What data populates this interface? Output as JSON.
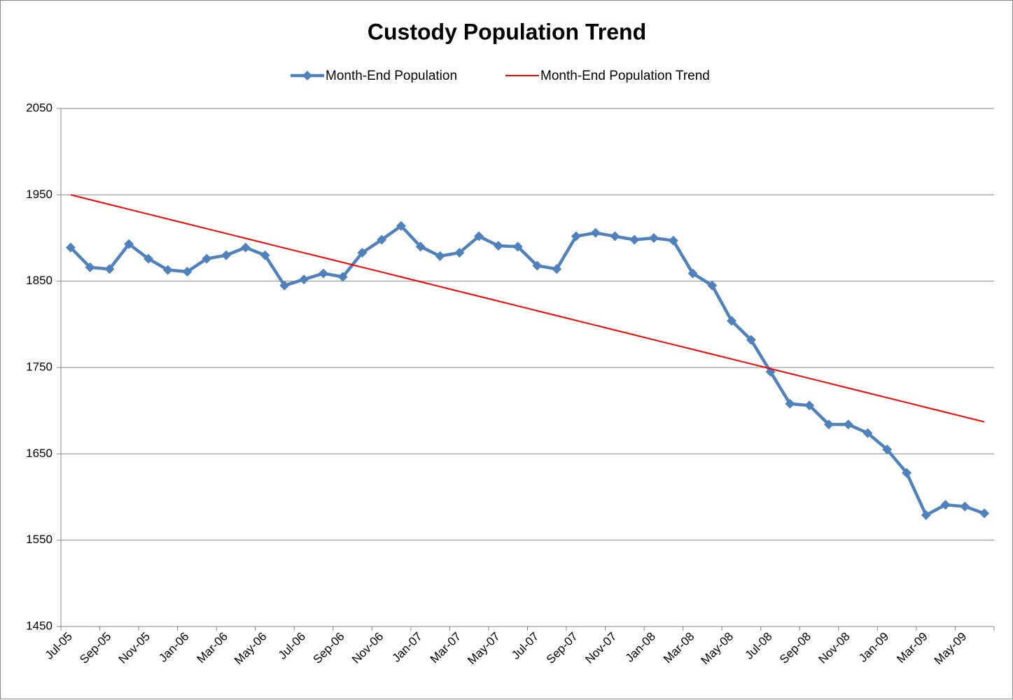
{
  "chart_data": {
    "type": "line",
    "title": "Custody Population Trend",
    "categories": [
      "Jul-05",
      null,
      "Sep-05",
      null,
      "Nov-05",
      null,
      "Jan-06",
      null,
      "Mar-06",
      null,
      "May-06",
      null,
      "Jul-06",
      null,
      "Sep-06",
      null,
      "Nov-06",
      null,
      "Jan-07",
      null,
      "Mar-07",
      null,
      "May-07",
      null,
      "Jul-07",
      null,
      "Sep-07",
      null,
      "Nov-07",
      null,
      "Jan-08",
      null,
      "Mar-08",
      null,
      "May-08",
      null,
      "Jul-08",
      null,
      "Sep-08",
      null,
      "Nov-08",
      null,
      "Jan-09",
      null,
      "Mar-09",
      null,
      "May-09",
      null
    ],
    "series": [
      {
        "name": "Month-End Population",
        "color": "#4f81bd",
        "marker": "diamond",
        "values": [
          1889,
          1866,
          1864,
          1893,
          1876,
          1863,
          1861,
          1876,
          1880,
          1889,
          1880,
          1845,
          1852,
          1859,
          1855,
          1883,
          1898,
          1914,
          1890,
          1879,
          1883,
          1902,
          1891,
          1890,
          1868,
          1864,
          1902,
          1906,
          1902,
          1898,
          1900,
          1897,
          1859,
          1845,
          1804,
          1782,
          1745,
          1708,
          1706,
          1684,
          1684,
          1674,
          1655,
          1628,
          1579,
          1591,
          1589,
          1581
        ]
      },
      {
        "name": "Month-End Population Trend",
        "color": "#ff0000",
        "values": [
          1950.0,
          1944.4,
          1938.8,
          1933.2,
          1927.6,
          1922.0,
          1916.4,
          1910.8,
          1905.2,
          1899.6,
          1894.0,
          1888.4,
          1882.8,
          1877.3,
          1871.7,
          1866.1,
          1860.5,
          1854.9,
          1849.3,
          1843.7,
          1838.1,
          1832.5,
          1826.9,
          1821.3,
          1815.7,
          1810.1,
          1804.5,
          1798.9,
          1793.3,
          1787.7,
          1782.1,
          1776.5,
          1771.0,
          1765.4,
          1759.8,
          1754.2,
          1748.6,
          1743.0,
          1737.4,
          1731.8,
          1726.2,
          1720.6,
          1715.0,
          1709.4,
          1703.8,
          1698.2,
          1692.6,
          1687.0
        ]
      }
    ],
    "ylim": [
      1450,
      2050
    ],
    "yticks": [
      1450,
      1550,
      1650,
      1750,
      1850,
      1950,
      2050
    ],
    "grid": true,
    "legend": "top"
  }
}
